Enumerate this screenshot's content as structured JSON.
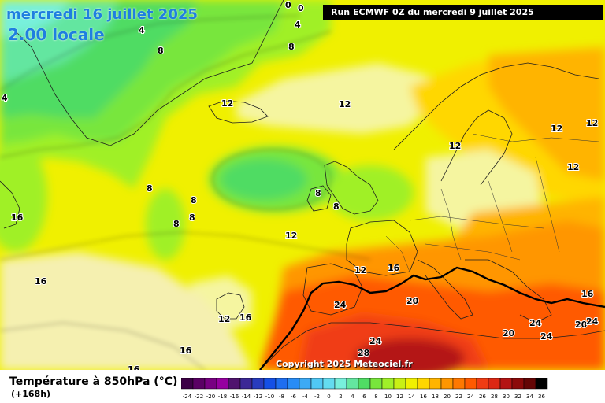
{
  "header": {
    "date_title": "mercredi 16 juillet 2025",
    "time_title": "2.00 locale",
    "run_info": "Run ECMWF 0Z du mercredi 9 juillet 2025"
  },
  "footer": {
    "parameter_title": "Température à 850hPa (°C)",
    "lead_time": "(+168h)",
    "copyright": "Copyright 2025 Meteociel.fr"
  },
  "colors": {
    "warm_front_line": "#000000",
    "text_blue": "#1f7fe0"
  },
  "legend": {
    "ticks": [
      "-24",
      "-22",
      "-20",
      "-18",
      "-16",
      "-14",
      "-12",
      "-10",
      "-8",
      "-6",
      "-4",
      "-2",
      "0",
      "2",
      "4",
      "6",
      "8",
      "10",
      "12",
      "14",
      "16",
      "18",
      "20",
      "22",
      "24",
      "26",
      "28",
      "30",
      "32",
      "34",
      "36"
    ],
    "colors": [
      "#3c0046",
      "#5a0064",
      "#780082",
      "#9600a0",
      "#50146e",
      "#3c2896",
      "#283cbe",
      "#1450e6",
      "#1e6ef0",
      "#288cf5",
      "#3caaf5",
      "#50c8f5",
      "#64dcf0",
      "#78f0dc",
      "#64e6a0",
      "#50dc64",
      "#78e63c",
      "#a0f028",
      "#c8f014",
      "#f0f000",
      "#ffd700",
      "#ffb400",
      "#ff9600",
      "#ff7800",
      "#ff5a00",
      "#f03c14",
      "#dc2814",
      "#b41414",
      "#8c0a0a",
      "#640505",
      "#000000"
    ]
  },
  "map_labels": [
    {
      "text": "0"
    },
    {
      "text": "0"
    },
    {
      "text": "4"
    },
    {
      "text": "4"
    },
    {
      "text": "4"
    },
    {
      "text": "8"
    },
    {
      "text": "8"
    },
    {
      "text": "12"
    },
    {
      "text": "12"
    },
    {
      "text": "12"
    },
    {
      "text": "12"
    },
    {
      "text": "12"
    },
    {
      "text": "12"
    },
    {
      "text": "8"
    },
    {
      "text": "8"
    },
    {
      "text": "8"
    },
    {
      "text": "8"
    },
    {
      "text": "8"
    },
    {
      "text": "8"
    },
    {
      "text": "16"
    },
    {
      "text": "16"
    },
    {
      "text": "16"
    },
    {
      "text": "16"
    },
    {
      "text": "16"
    },
    {
      "text": "12"
    },
    {
      "text": "12"
    },
    {
      "text": "12"
    },
    {
      "text": "24"
    },
    {
      "text": "20"
    },
    {
      "text": "28"
    },
    {
      "text": "24"
    },
    {
      "text": "20"
    },
    {
      "text": "24"
    },
    {
      "text": "24"
    },
    {
      "text": "20"
    },
    {
      "text": "24"
    },
    {
      "text": "16"
    },
    {
      "text": "16"
    }
  ]
}
